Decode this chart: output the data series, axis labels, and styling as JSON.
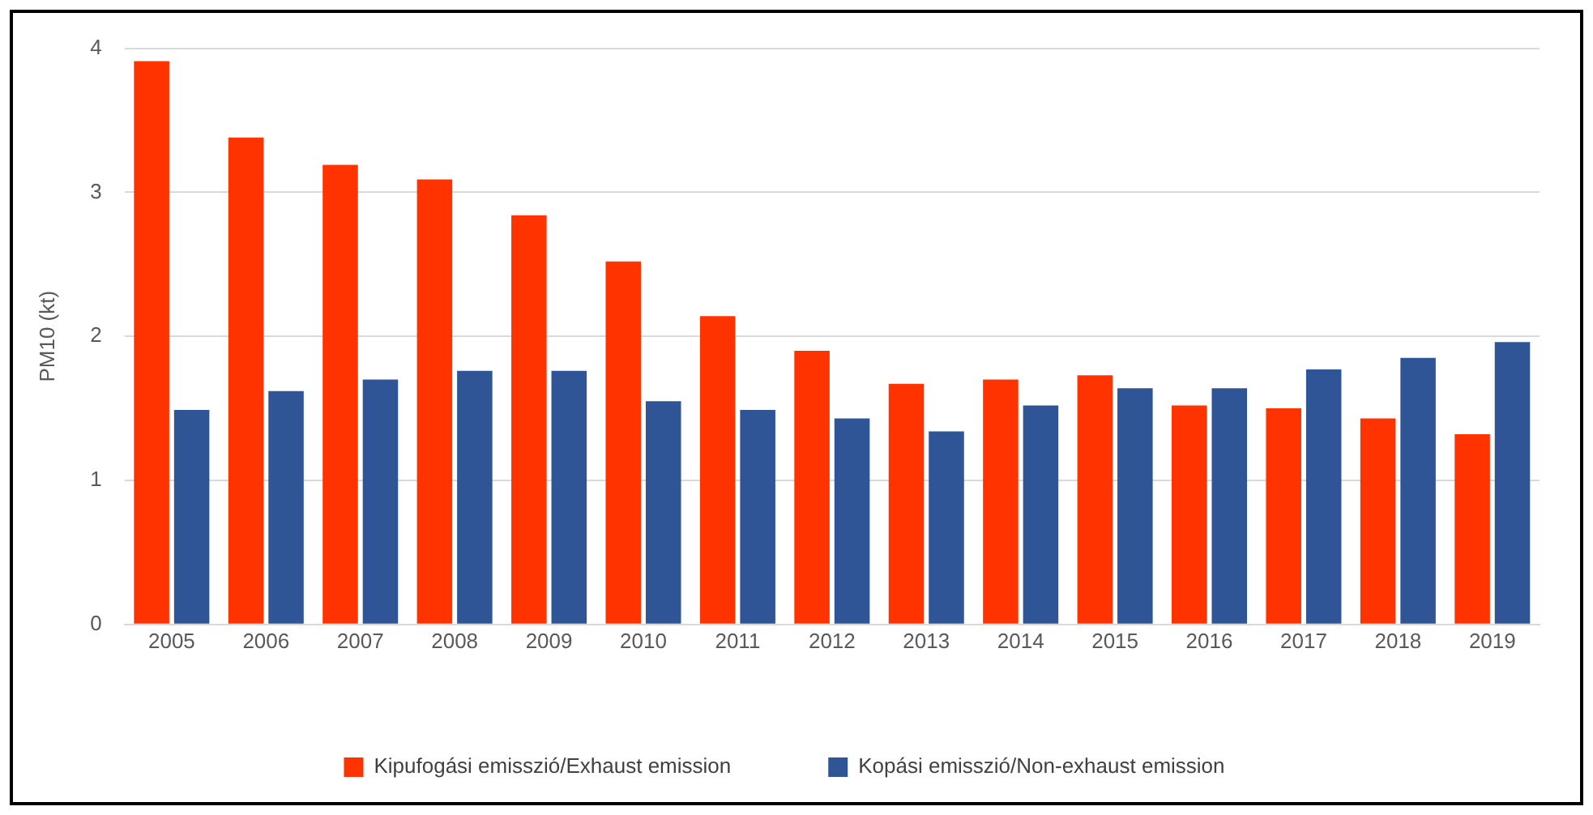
{
  "chart_data": {
    "type": "bar",
    "ylabel": "PM10 (kt)",
    "categories": [
      "2005",
      "2006",
      "2007",
      "2008",
      "2009",
      "2010",
      "2011",
      "2012",
      "2013",
      "2014",
      "2015",
      "2016",
      "2017",
      "2018",
      "2019"
    ],
    "series": [
      {
        "name": "Kipufogási emisszió/Exhaust emission",
        "color": "#ff3300",
        "values": [
          3.91,
          3.38,
          3.19,
          3.09,
          2.84,
          2.52,
          2.14,
          1.9,
          1.67,
          1.7,
          1.73,
          1.52,
          1.5,
          1.43,
          1.32
        ]
      },
      {
        "name": "Kopási emisszió/Non-exhaust emission",
        "color": "#2f5597",
        "values": [
          1.49,
          1.62,
          1.7,
          1.76,
          1.76,
          1.55,
          1.49,
          1.43,
          1.34,
          1.52,
          1.64,
          1.64,
          1.77,
          1.85,
          1.96
        ]
      }
    ],
    "ylim": [
      0,
      4
    ],
    "yticks": [
      0,
      1,
      2,
      3,
      4
    ],
    "grid": "y",
    "legend": "bottom"
  }
}
